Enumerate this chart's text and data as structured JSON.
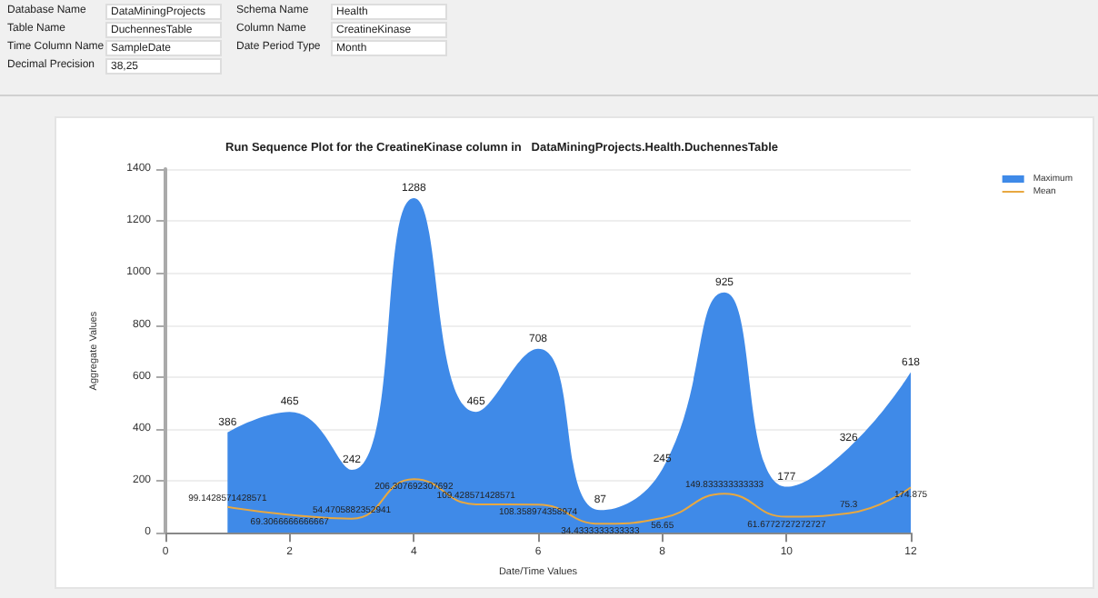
{
  "chart_data": {
    "type": "area",
    "title": "Run Sequence Plot for the CreatineKinase column in   DataMiningProjects.Health.DuchennesTable",
    "xlabel": "Date/Time Values",
    "ylabel": "Aggregate Values",
    "annotations": [
      "Database Name",
      "DataMiningProjects",
      "Schema Name",
      "Health",
      "Table Name",
      "DuchennesTable",
      "Column Name",
      "CreatineKinase",
      "Time Column Name",
      "SampleDate",
      "Date Period Type",
      "Month",
      "Decimal Precision",
      "38,25"
    ],
    "x": [
      1,
      2,
      3,
      4,
      5,
      6,
      7,
      8,
      9,
      10,
      11,
      12
    ],
    "series": [
      {
        "name": "Maximum",
        "type": "area",
        "color": "#3f8ae8",
        "values": [
          386,
          465,
          242,
          1288,
          465,
          708,
          87,
          245,
          925,
          177,
          326,
          618
        ]
      },
      {
        "name": "Mean",
        "type": "line",
        "color": "#e8a840",
        "values": [
          99.1428571428571,
          69.3066666666667,
          54.4705882352941,
          206.307692307692,
          109.428571428571,
          108.358974358974,
          34.4333333333333,
          56.65,
          149.833333333333,
          61.6772727272727,
          75.3,
          174.875
        ]
      }
    ],
    "xlim": [
      0,
      12
    ],
    "xticks": [
      0,
      2,
      4,
      6,
      8,
      10,
      12
    ],
    "ylim": [
      0,
      1400
    ],
    "yticks": [
      0,
      200,
      400,
      600,
      800,
      1000,
      1200,
      1400
    ],
    "grid": "y",
    "legend": "top right",
    "data_labels": true,
    "marker": "none"
  }
}
